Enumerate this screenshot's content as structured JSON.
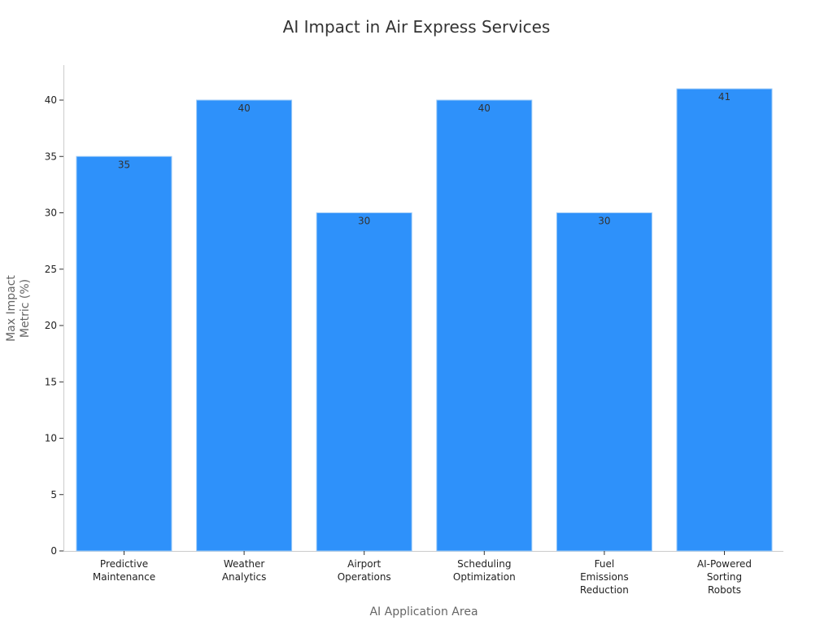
{
  "chart_data": {
    "type": "bar",
    "title": "AI Impact in Air Express Services",
    "xlabel": "AI Application Area",
    "ylabel": [
      "Max Impact",
      "Metric (%)"
    ],
    "categories": [
      [
        "Predictive",
        "Maintenance"
      ],
      [
        "Weather",
        "Analytics"
      ],
      [
        "Airport",
        "Operations"
      ],
      [
        "Scheduling",
        "Optimization"
      ],
      [
        "Fuel",
        "Emissions",
        "Reduction"
      ],
      [
        "AI-Powered",
        "Sorting",
        "Robots"
      ]
    ],
    "values": [
      35,
      40,
      30,
      40,
      30,
      41
    ],
    "ylim": [
      0,
      43
    ],
    "yticks": [
      0,
      5,
      10,
      15,
      20,
      25,
      30,
      35,
      40
    ],
    "grid": false,
    "colors": {
      "bar": "#2e91fa",
      "bar_edge": "#9ccaf7"
    }
  }
}
